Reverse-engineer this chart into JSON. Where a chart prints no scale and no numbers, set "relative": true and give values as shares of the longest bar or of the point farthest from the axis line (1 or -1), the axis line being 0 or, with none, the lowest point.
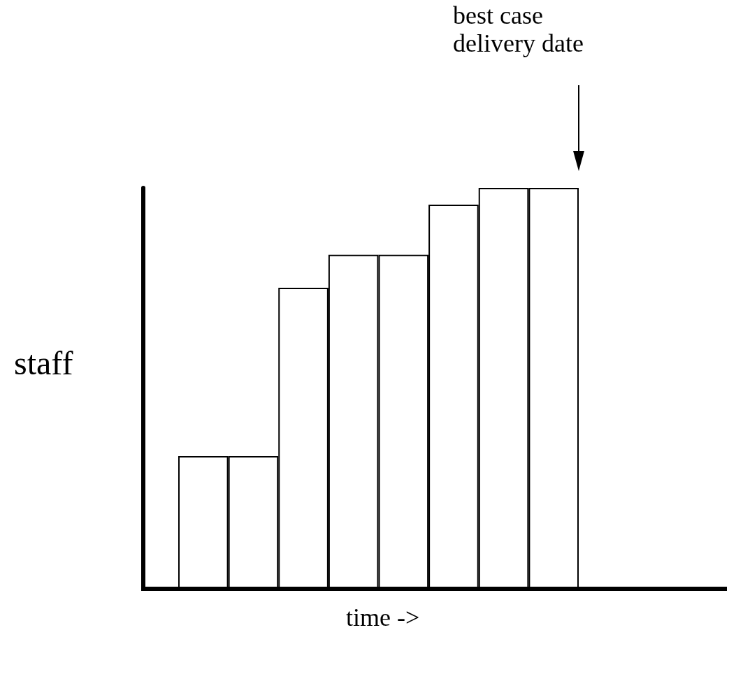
{
  "chart_data": {
    "type": "bar",
    "relative": true,
    "xlabel": "time ->",
    "ylabel": "staff",
    "categories": [
      null,
      null,
      null,
      null,
      null,
      null,
      null,
      null
    ],
    "values": [
      0.331,
      0.331,
      0.751,
      0.833,
      0.833,
      0.958,
      1,
      1
    ],
    "color": "#ffffff",
    "annotations": [
      "best case\ndelivery date"
    ],
    "grid": false
  }
}
